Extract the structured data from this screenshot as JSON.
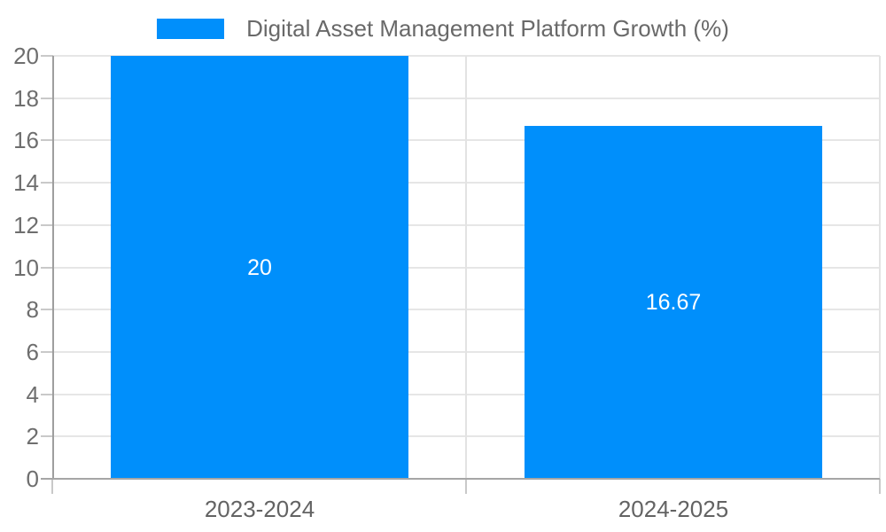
{
  "chart_data": {
    "type": "bar",
    "title": "Digital Asset Management Platform Growth (%)",
    "categories": [
      "2023-2024",
      "2024-2025"
    ],
    "values": [
      20,
      16.67
    ],
    "value_labels": [
      "20",
      "16.67"
    ],
    "ylim": [
      0,
      20
    ],
    "ytick_step": 2,
    "ytick_labels": [
      "0",
      "2",
      "4",
      "6",
      "8",
      "10",
      "12",
      "14",
      "16",
      "18",
      "20"
    ],
    "xlabel": "",
    "ylabel": "",
    "grid": true,
    "legend_position": "top",
    "colors": {
      "bar": "#008FFB",
      "bar_label": "#ffffff",
      "gridline": "#e6e6e6",
      "axis_line": "#9e9e9e",
      "tick": "#c9c9c9",
      "y_label": "#6e6e6e",
      "x_label": "#636363",
      "legend_text": "#696969",
      "background": "#ffffff"
    }
  }
}
